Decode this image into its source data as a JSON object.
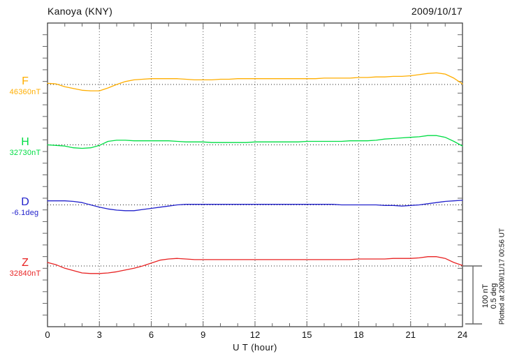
{
  "title": "Kanoya (KNY)",
  "date": "2009/10/17",
  "xlabel": "U T (hour)",
  "scale_label_lines": [
    "100 nT",
    "0.5 deg"
  ],
  "plotted_note": "Plotted at 2009/11/17 00:56 UT",
  "colors": {
    "axis": "#333333",
    "grid": "#555555",
    "tick": "#666666",
    "baseline": "#222222"
  },
  "chart_data": {
    "type": "line",
    "title": "Kanoya (KNY) magnetogram",
    "subtitle": "2009/10/17",
    "xlabel": "U T (hour)",
    "x_range": [
      0,
      24
    ],
    "x_ticks": [
      0,
      3,
      6,
      9,
      12,
      15,
      18,
      21,
      24
    ],
    "x_minor_tick_hours": 1,
    "grid": "dotted vertical every 3 h; dotted horizontal baseline per component",
    "legend_position": "left margin labels",
    "x_start": 0,
    "x_step_hours": 0.5,
    "scale_bar": {
      "nT": 100,
      "deg": 0.5
    },
    "series": [
      {
        "name": "F",
        "baseline_label": "46360nT",
        "baseline_value": 46360,
        "unit": "nT",
        "color": "#FFAE00",
        "offsets": [
          2,
          1,
          -4,
          -7,
          -10,
          -11,
          -11,
          -6,
          0,
          5,
          8,
          9,
          10,
          10,
          10,
          10,
          9,
          8,
          8,
          8,
          9,
          9,
          10,
          10,
          10,
          10,
          10,
          10,
          10,
          10,
          10,
          10,
          11,
          11,
          11,
          11,
          12,
          12,
          13,
          13,
          14,
          14,
          15,
          17,
          19,
          20,
          18,
          11,
          1
        ]
      },
      {
        "name": "H",
        "baseline_label": "32730nT",
        "baseline_value": 32730,
        "unit": "nT",
        "color": "#00DD44",
        "offsets": [
          0,
          -1,
          -2,
          -5,
          -6,
          -5,
          -1,
          6,
          8,
          8,
          7,
          7,
          7,
          7,
          7,
          6,
          5,
          5,
          5,
          4,
          4,
          4,
          4,
          4,
          5,
          5,
          5,
          5,
          5,
          5,
          6,
          6,
          6,
          6,
          6,
          7,
          7,
          7,
          8,
          10,
          11,
          12,
          13,
          14,
          16,
          16,
          13,
          6,
          -2
        ]
      },
      {
        "name": "D",
        "baseline_label": "-6.1deg",
        "baseline_value": -6.1,
        "unit": "deg",
        "color": "#2222CC",
        "offsets": [
          0.035,
          0.035,
          0.035,
          0.03,
          0.02,
          0,
          -0.02,
          -0.035,
          -0.045,
          -0.05,
          -0.05,
          -0.04,
          -0.03,
          -0.02,
          -0.01,
          0,
          0.005,
          0.005,
          0.005,
          0.005,
          0.005,
          0.005,
          0.005,
          0.005,
          0.005,
          0.005,
          0.005,
          0.005,
          0.005,
          0.005,
          0.005,
          0.005,
          0.005,
          0.005,
          0,
          0,
          0,
          0,
          0,
          -0.005,
          -0.005,
          -0.01,
          -0.005,
          0,
          0.01,
          0.02,
          0.03,
          0.035,
          0.04
        ]
      },
      {
        "name": "Z",
        "baseline_label": "32840nT",
        "baseline_value": 32840,
        "unit": "nT",
        "color": "#E82222",
        "offsets": [
          6,
          2,
          -4,
          -8,
          -12,
          -13,
          -13,
          -12,
          -10,
          -7,
          -4,
          0,
          5,
          10,
          12,
          13,
          12,
          11,
          11,
          11,
          11,
          11,
          11,
          11,
          11,
          11,
          11,
          11,
          11,
          11,
          11,
          11,
          11,
          11,
          11,
          11,
          12,
          12,
          12,
          12,
          13,
          13,
          13,
          14,
          16,
          16,
          13,
          6,
          1
        ]
      }
    ]
  }
}
